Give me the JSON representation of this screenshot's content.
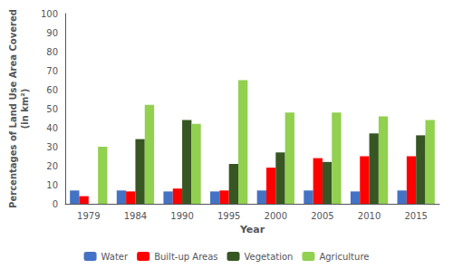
{
  "chart_data": {
    "type": "bar",
    "categories": [
      "1979",
      "1984",
      "1990",
      "1995",
      "2000",
      "2005",
      "2010",
      "2015"
    ],
    "series": [
      {
        "name": "Water",
        "color": "#4472C4",
        "values": [
          7,
          7,
          6.5,
          6.5,
          7,
          7,
          6.5,
          7
        ]
      },
      {
        "name": "Built-up Areas",
        "color": "#FF0000",
        "values": [
          4,
          6.5,
          8,
          7,
          19,
          24,
          25,
          25
        ]
      },
      {
        "name": "Vegetation",
        "color": "#375623",
        "values": [
          0,
          34,
          44,
          21,
          27,
          22,
          37,
          36
        ]
      },
      {
        "name": "Agriculture",
        "color": "#92D050",
        "values": [
          30,
          52,
          42,
          65,
          48,
          48,
          46,
          44
        ]
      }
    ],
    "xlabel": "Year",
    "ylabel": "Percentages of Land Use Area Covered\n(in km²)",
    "ylim": [
      0,
      100
    ],
    "yticks": [
      0,
      10,
      20,
      30,
      40,
      50,
      60,
      70,
      80,
      90,
      100
    ],
    "grid": false,
    "legend": "bottom"
  }
}
